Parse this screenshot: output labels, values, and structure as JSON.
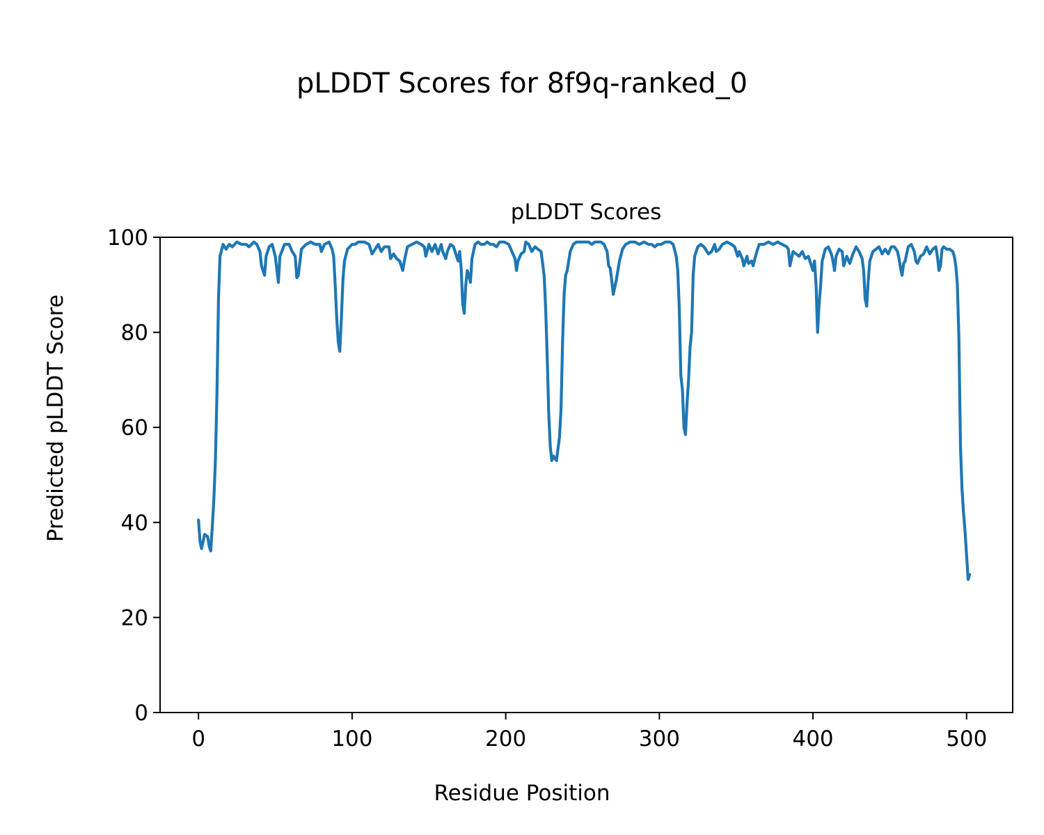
{
  "figure": {
    "suptitle": "pLDDT Scores for 8f9q-ranked_0"
  },
  "chart_data": {
    "type": "line",
    "title": "pLDDT Scores",
    "xlabel": "Residue Position",
    "ylabel": "Predicted pLDDT Score",
    "xlim": [
      -25,
      530
    ],
    "ylim": [
      0,
      100
    ],
    "x_ticks": [
      0,
      100,
      200,
      300,
      400,
      500
    ],
    "y_ticks": [
      0,
      20,
      40,
      60,
      80,
      100
    ],
    "grid": false,
    "legend": "none",
    "series": [
      {
        "color": "#1f77b4",
        "points": [
          [
            0,
            40.5
          ],
          [
            1,
            36
          ],
          [
            2,
            34.5
          ],
          [
            4,
            37.5
          ],
          [
            6,
            37
          ],
          [
            7,
            35
          ],
          [
            8,
            34
          ],
          [
            9,
            39
          ],
          [
            10,
            45
          ],
          [
            11,
            53
          ],
          [
            12,
            67
          ],
          [
            13,
            87
          ],
          [
            14,
            96
          ],
          [
            16,
            98.5
          ],
          [
            18,
            97.5
          ],
          [
            20,
            98.5
          ],
          [
            22,
            98
          ],
          [
            25,
            99
          ],
          [
            28,
            98.5
          ],
          [
            31,
            98.5
          ],
          [
            33,
            98
          ],
          [
            36,
            99
          ],
          [
            38,
            98.5
          ],
          [
            40,
            97
          ],
          [
            41,
            94
          ],
          [
            43,
            92
          ],
          [
            44,
            96
          ],
          [
            46,
            98
          ],
          [
            48,
            98.5
          ],
          [
            50,
            96
          ],
          [
            52,
            90.5
          ],
          [
            53,
            96
          ],
          [
            56,
            98.5
          ],
          [
            59,
            98.5
          ],
          [
            61,
            97
          ],
          [
            63,
            96
          ],
          [
            64,
            91.5
          ],
          [
            65,
            92
          ],
          [
            67,
            97.5
          ],
          [
            70,
            98.5
          ],
          [
            73,
            99
          ],
          [
            76,
            98.5
          ],
          [
            79,
            98.5
          ],
          [
            80,
            97
          ],
          [
            82,
            98.5
          ],
          [
            85,
            99
          ],
          [
            87,
            97.5
          ],
          [
            88,
            96
          ],
          [
            89,
            90
          ],
          [
            90,
            83
          ],
          [
            91,
            78
          ],
          [
            92,
            76
          ],
          [
            93,
            83
          ],
          [
            94,
            91
          ],
          [
            95,
            95
          ],
          [
            97,
            97.5
          ],
          [
            100,
            98.5
          ],
          [
            102,
            98.5
          ],
          [
            104,
            99
          ],
          [
            108,
            99
          ],
          [
            111,
            98.5
          ],
          [
            113,
            96.5
          ],
          [
            115,
            97.5
          ],
          [
            117,
            98.5
          ],
          [
            119,
            97
          ],
          [
            121,
            98
          ],
          [
            124,
            98
          ],
          [
            125,
            95.5
          ],
          [
            127,
            96.5
          ],
          [
            129,
            95.5
          ],
          [
            131,
            95
          ],
          [
            133,
            93
          ],
          [
            134,
            95
          ],
          [
            136,
            98
          ],
          [
            139,
            98.5
          ],
          [
            142,
            99
          ],
          [
            145,
            98.5
          ],
          [
            147,
            98
          ],
          [
            148,
            96
          ],
          [
            150,
            98.5
          ],
          [
            152,
            97
          ],
          [
            154,
            98.5
          ],
          [
            156,
            96.5
          ],
          [
            158,
            98.5
          ],
          [
            159,
            97
          ],
          [
            161,
            95.5
          ],
          [
            162,
            97
          ],
          [
            164,
            98.5
          ],
          [
            166,
            98
          ],
          [
            168,
            96
          ],
          [
            169,
            95
          ],
          [
            170,
            97
          ],
          [
            171,
            93.5
          ],
          [
            172,
            86
          ],
          [
            173,
            84
          ],
          [
            174,
            90
          ],
          [
            175,
            93
          ],
          [
            176,
            92
          ],
          [
            177,
            90.5
          ],
          [
            178,
            95.5
          ],
          [
            180,
            98.5
          ],
          [
            182,
            99
          ],
          [
            184,
            98.5
          ],
          [
            186,
            98.5
          ],
          [
            188,
            99
          ],
          [
            190,
            98.5
          ],
          [
            192,
            98.5
          ],
          [
            194,
            98
          ],
          [
            196,
            99
          ],
          [
            199,
            99
          ],
          [
            202,
            98.5
          ],
          [
            204,
            97
          ],
          [
            206,
            95.5
          ],
          [
            207,
            93
          ],
          [
            208,
            95
          ],
          [
            210,
            96.5
          ],
          [
            212,
            97
          ],
          [
            213,
            99
          ],
          [
            215,
            98.5
          ],
          [
            217,
            97
          ],
          [
            219,
            98
          ],
          [
            221,
            97.5
          ],
          [
            223,
            97
          ],
          [
            225,
            92
          ],
          [
            226,
            85
          ],
          [
            227,
            75
          ],
          [
            228,
            63
          ],
          [
            229,
            56
          ],
          [
            230,
            53
          ],
          [
            231,
            54
          ],
          [
            233,
            53
          ],
          [
            235,
            58
          ],
          [
            236,
            64
          ],
          [
            237,
            78
          ],
          [
            238,
            88
          ],
          [
            239,
            92
          ],
          [
            240,
            93
          ],
          [
            242,
            97
          ],
          [
            244,
            98.5
          ],
          [
            246,
            99
          ],
          [
            250,
            99
          ],
          [
            254,
            99
          ],
          [
            256,
            98.5
          ],
          [
            258,
            99
          ],
          [
            262,
            99
          ],
          [
            264,
            98.5
          ],
          [
            266,
            97
          ],
          [
            267,
            94
          ],
          [
            268,
            93.5
          ],
          [
            269,
            91
          ],
          [
            270,
            88
          ],
          [
            272,
            91
          ],
          [
            274,
            95
          ],
          [
            276,
            97.5
          ],
          [
            278,
            98.5
          ],
          [
            281,
            99
          ],
          [
            284,
            99
          ],
          [
            287,
            98.5
          ],
          [
            290,
            99
          ],
          [
            293,
            98.5
          ],
          [
            295,
            98.5
          ],
          [
            297,
            98
          ],
          [
            299,
            98.5
          ],
          [
            301,
            98.5
          ],
          [
            304,
            99
          ],
          [
            307,
            99
          ],
          [
            309,
            98.5
          ],
          [
            311,
            96
          ],
          [
            312,
            93
          ],
          [
            313,
            85
          ],
          [
            314,
            71
          ],
          [
            315,
            68
          ],
          [
            316,
            60
          ],
          [
            317,
            58.5
          ],
          [
            318,
            65
          ],
          [
            319,
            70
          ],
          [
            320,
            77
          ],
          [
            321,
            80
          ],
          [
            322,
            92
          ],
          [
            323,
            96
          ],
          [
            325,
            98
          ],
          [
            327,
            98.5
          ],
          [
            329,
            98
          ],
          [
            331,
            97
          ],
          [
            332,
            96.5
          ],
          [
            334,
            97
          ],
          [
            336,
            98.5
          ],
          [
            337,
            97
          ],
          [
            339,
            97.5
          ],
          [
            341,
            98.5
          ],
          [
            344,
            99
          ],
          [
            347,
            98.5
          ],
          [
            349,
            98
          ],
          [
            351,
            96
          ],
          [
            352,
            97
          ],
          [
            354,
            95.5
          ],
          [
            355,
            94
          ],
          [
            357,
            96
          ],
          [
            358,
            94.5
          ],
          [
            360,
            95
          ],
          [
            361,
            94
          ],
          [
            363,
            96.5
          ],
          [
            365,
            98.5
          ],
          [
            368,
            98.5
          ],
          [
            371,
            99
          ],
          [
            374,
            98.5
          ],
          [
            377,
            99
          ],
          [
            380,
            98.5
          ],
          [
            383,
            98
          ],
          [
            384,
            97.5
          ],
          [
            385,
            94
          ],
          [
            387,
            97
          ],
          [
            389,
            96.5
          ],
          [
            391,
            96
          ],
          [
            393,
            97
          ],
          [
            395,
            95.5
          ],
          [
            397,
            96
          ],
          [
            399,
            94
          ],
          [
            400,
            93
          ],
          [
            401,
            95
          ],
          [
            402,
            90
          ],
          [
            403,
            80
          ],
          [
            404,
            86
          ],
          [
            405,
            90
          ],
          [
            406,
            95
          ],
          [
            408,
            97.5
          ],
          [
            410,
            98
          ],
          [
            412,
            96.5
          ],
          [
            413,
            95
          ],
          [
            414,
            93
          ],
          [
            415,
            96
          ],
          [
            417,
            97.5
          ],
          [
            419,
            97
          ],
          [
            420,
            94
          ],
          [
            422,
            96
          ],
          [
            424,
            94.5
          ],
          [
            426,
            96.5
          ],
          [
            428,
            98
          ],
          [
            430,
            97
          ],
          [
            432,
            95.5
          ],
          [
            433,
            93
          ],
          [
            434,
            87
          ],
          [
            435,
            85.5
          ],
          [
            436,
            91
          ],
          [
            437,
            95
          ],
          [
            439,
            97
          ],
          [
            441,
            97.5
          ],
          [
            443,
            98
          ],
          [
            445,
            96.5
          ],
          [
            447,
            97.5
          ],
          [
            449,
            96.5
          ],
          [
            451,
            98
          ],
          [
            453,
            98
          ],
          [
            455,
            97
          ],
          [
            456,
            95.5
          ],
          [
            457,
            93.5
          ],
          [
            458,
            92
          ],
          [
            459,
            94.5
          ],
          [
            460,
            95
          ],
          [
            462,
            98
          ],
          [
            464,
            98.5
          ],
          [
            466,
            97
          ],
          [
            467,
            95
          ],
          [
            468,
            94.5
          ],
          [
            470,
            96
          ],
          [
            472,
            96.5
          ],
          [
            474,
            98
          ],
          [
            476,
            96.5
          ],
          [
            478,
            97.5
          ],
          [
            480,
            98
          ],
          [
            481,
            96
          ],
          [
            482,
            93
          ],
          [
            483,
            94
          ],
          [
            484,
            97.5
          ],
          [
            485,
            98
          ],
          [
            487,
            97.5
          ],
          [
            489,
            97.5
          ],
          [
            491,
            97
          ],
          [
            492,
            96
          ],
          [
            493,
            94
          ],
          [
            494,
            90
          ],
          [
            495,
            79
          ],
          [
            496,
            56
          ],
          [
            497,
            47
          ],
          [
            498,
            42
          ],
          [
            499,
            38
          ],
          [
            500,
            33
          ],
          [
            501,
            28
          ],
          [
            502,
            29
          ]
        ]
      }
    ]
  }
}
